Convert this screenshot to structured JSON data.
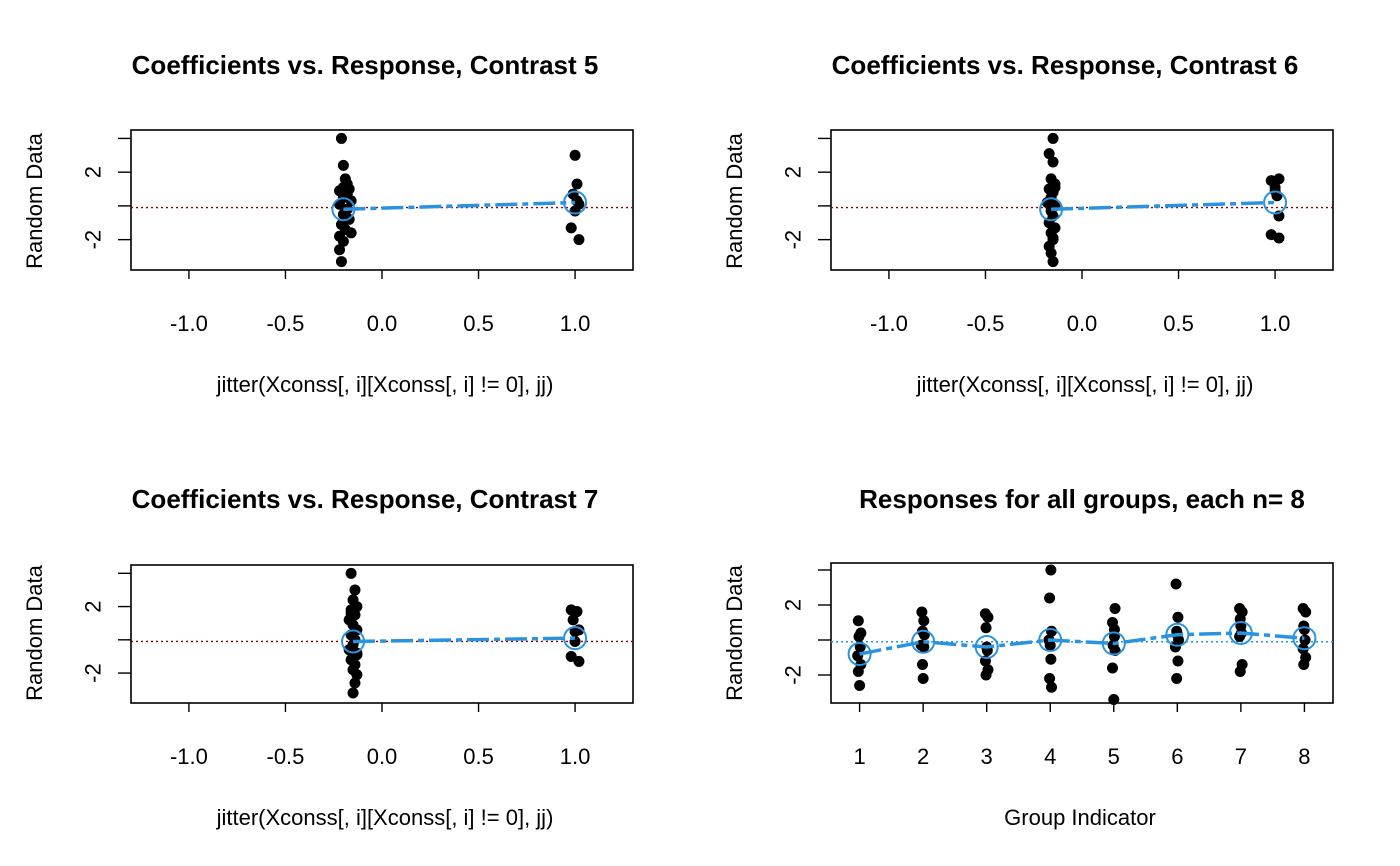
{
  "chart_data": [
    {
      "type": "scatter",
      "title": "Coefficients vs. Response, Contrast 5",
      "xlabel": "jitter(Xconss[, i][Xconss[, i] != 0], jj)",
      "ylabel": "Random Data",
      "xlim": [
        -1.3,
        1.3
      ],
      "ylim": [
        -3.8,
        4.5
      ],
      "x_ticks": [
        -1.0,
        -0.5,
        0.0,
        0.5,
        1.0
      ],
      "x_tick_labels": [
        "-1.0",
        "-0.5",
        "0.0",
        "0.5",
        "1.0"
      ],
      "y_ticks": [
        -4,
        -2,
        0,
        2,
        4
      ],
      "y_tick_labels": [
        "",
        "-2",
        "",
        "2",
        ""
      ],
      "reference_line": {
        "y": -0.1,
        "style": "dotted",
        "color": "#8b0000"
      },
      "points": [
        {
          "x": -0.21,
          "y": 4.0
        },
        {
          "x": -0.2,
          "y": 2.4
        },
        {
          "x": -0.19,
          "y": 1.6
        },
        {
          "x": -0.18,
          "y": 1.3
        },
        {
          "x": -0.2,
          "y": 1.1
        },
        {
          "x": -0.17,
          "y": 1.0
        },
        {
          "x": -0.22,
          "y": 0.9
        },
        {
          "x": -0.18,
          "y": 0.7
        },
        {
          "x": -0.2,
          "y": 0.5
        },
        {
          "x": -0.16,
          "y": 0.3
        },
        {
          "x": -0.22,
          "y": 0.1
        },
        {
          "x": -0.18,
          "y": -0.2
        },
        {
          "x": -0.2,
          "y": -0.5
        },
        {
          "x": -0.17,
          "y": -0.8
        },
        {
          "x": -0.21,
          "y": -1.1
        },
        {
          "x": -0.19,
          "y": -1.4
        },
        {
          "x": -0.22,
          "y": -1.8
        },
        {
          "x": -0.2,
          "y": -2.1
        },
        {
          "x": -0.22,
          "y": -2.6
        },
        {
          "x": -0.21,
          "y": -3.3
        },
        {
          "x": -0.16,
          "y": -1.6
        },
        {
          "x": -0.18,
          "y": 0.9
        },
        {
          "x": 1.0,
          "y": 3.0
        },
        {
          "x": 1.01,
          "y": 1.3
        },
        {
          "x": 0.99,
          "y": 0.7
        },
        {
          "x": 1.02,
          "y": 0.1
        },
        {
          "x": 1.0,
          "y": -0.3
        },
        {
          "x": 0.98,
          "y": -1.3
        },
        {
          "x": 1.02,
          "y": -2.0
        },
        {
          "x": 1.01,
          "y": 0.3
        }
      ],
      "means": [
        {
          "x": -0.2,
          "y": -0.2
        },
        {
          "x": 1.0,
          "y": 0.2
        }
      ],
      "mean_color": "#2a93e0"
    },
    {
      "type": "scatter",
      "title": "Coefficients vs. Response, Contrast 6",
      "xlabel": "jitter(Xconss[, i][Xconss[, i] != 0], jj)",
      "ylabel": "Random Data",
      "xlim": [
        -1.3,
        1.3
      ],
      "ylim": [
        -3.8,
        4.5
      ],
      "x_ticks": [
        -1.0,
        -0.5,
        0.0,
        0.5,
        1.0
      ],
      "x_tick_labels": [
        "-1.0",
        "-0.5",
        "0.0",
        "0.5",
        "1.0"
      ],
      "y_ticks": [
        -4,
        -2,
        0,
        2,
        4
      ],
      "y_tick_labels": [
        "",
        "-2",
        "",
        "2",
        ""
      ],
      "reference_line": {
        "y": -0.1,
        "style": "dotted",
        "color": "#8b0000"
      },
      "points": [
        {
          "x": -0.15,
          "y": 4.0
        },
        {
          "x": -0.17,
          "y": 3.1
        },
        {
          "x": -0.15,
          "y": 2.6
        },
        {
          "x": -0.16,
          "y": 1.6
        },
        {
          "x": -0.14,
          "y": 1.3
        },
        {
          "x": -0.17,
          "y": 1.0
        },
        {
          "x": -0.15,
          "y": 0.8
        },
        {
          "x": -0.16,
          "y": 0.5
        },
        {
          "x": -0.18,
          "y": 0.2
        },
        {
          "x": -0.14,
          "y": 0.0
        },
        {
          "x": -0.16,
          "y": -0.3
        },
        {
          "x": -0.15,
          "y": -0.6
        },
        {
          "x": -0.17,
          "y": -1.0
        },
        {
          "x": -0.14,
          "y": -1.3
        },
        {
          "x": -0.16,
          "y": -1.6
        },
        {
          "x": -0.15,
          "y": -2.0
        },
        {
          "x": -0.17,
          "y": -2.4
        },
        {
          "x": -0.16,
          "y": -2.8
        },
        {
          "x": -0.15,
          "y": -3.3
        },
        {
          "x": -0.14,
          "y": 1.1
        },
        {
          "x": -0.16,
          "y": -0.1
        },
        {
          "x": -0.15,
          "y": -1.9
        },
        {
          "x": 0.98,
          "y": 1.5
        },
        {
          "x": 1.02,
          "y": 1.6
        },
        {
          "x": 1.0,
          "y": 1.1
        },
        {
          "x": 1.01,
          "y": 0.6
        },
        {
          "x": 1.02,
          "y": -0.6
        },
        {
          "x": 0.98,
          "y": -1.7
        },
        {
          "x": 1.02,
          "y": -1.9
        },
        {
          "x": 1.0,
          "y": 0.9
        }
      ],
      "means": [
        {
          "x": -0.16,
          "y": -0.2
        },
        {
          "x": 1.0,
          "y": 0.2
        }
      ],
      "mean_color": "#2a93e0"
    },
    {
      "type": "scatter",
      "title": "Coefficients vs. Response, Contrast 7",
      "xlabel": "jitter(Xconss[, i][Xconss[, i] != 0], jj)",
      "ylabel": "Random Data",
      "xlim": [
        -1.3,
        1.3
      ],
      "ylim": [
        -3.8,
        4.5
      ],
      "x_ticks": [
        -1.0,
        -0.5,
        0.0,
        0.5,
        1.0
      ],
      "x_tick_labels": [
        "-1.0",
        "-0.5",
        "0.0",
        "0.5",
        "1.0"
      ],
      "y_ticks": [
        -4,
        -2,
        0,
        2,
        4
      ],
      "y_tick_labels": [
        "",
        "-2",
        "",
        "2",
        ""
      ],
      "reference_line": {
        "y": -0.1,
        "style": "dotted",
        "color": "#8b0000"
      },
      "points": [
        {
          "x": -0.16,
          "y": 4.0
        },
        {
          "x": -0.14,
          "y": 3.0
        },
        {
          "x": -0.15,
          "y": 2.4
        },
        {
          "x": -0.13,
          "y": 2.0
        },
        {
          "x": -0.16,
          "y": 1.8
        },
        {
          "x": -0.14,
          "y": 1.5
        },
        {
          "x": -0.17,
          "y": 1.2
        },
        {
          "x": -0.15,
          "y": 0.9
        },
        {
          "x": -0.13,
          "y": 0.6
        },
        {
          "x": -0.16,
          "y": 0.3
        },
        {
          "x": -0.14,
          "y": 0.0
        },
        {
          "x": -0.15,
          "y": -0.3
        },
        {
          "x": -0.17,
          "y": -0.6
        },
        {
          "x": -0.13,
          "y": -0.9
        },
        {
          "x": -0.16,
          "y": -1.2
        },
        {
          "x": -0.14,
          "y": -1.5
        },
        {
          "x": -0.15,
          "y": -1.8
        },
        {
          "x": -0.13,
          "y": -2.1
        },
        {
          "x": -0.14,
          "y": -2.6
        },
        {
          "x": -0.15,
          "y": -3.2
        },
        {
          "x": -0.16,
          "y": 1.6
        },
        {
          "x": -0.13,
          "y": -0.8
        },
        {
          "x": 0.98,
          "y": 1.8
        },
        {
          "x": 1.01,
          "y": 1.7
        },
        {
          "x": 0.99,
          "y": 1.2
        },
        {
          "x": 1.02,
          "y": 0.6
        },
        {
          "x": 1.0,
          "y": -0.1
        },
        {
          "x": 0.98,
          "y": -1.0
        },
        {
          "x": 1.02,
          "y": -1.3
        },
        {
          "x": 1.0,
          "y": 0.5
        }
      ],
      "means": [
        {
          "x": -0.15,
          "y": -0.1
        },
        {
          "x": 1.0,
          "y": 0.1
        }
      ],
      "mean_color": "#2a93e0"
    },
    {
      "type": "scatter",
      "title": "Responses for all groups, each n= 8",
      "xlabel": "Group Indicator",
      "ylabel": "Random Data",
      "xlim": [
        0.55,
        8.45
      ],
      "ylim": [
        -3.6,
        4.4
      ],
      "x_ticks": [
        1,
        2,
        3,
        4,
        5,
        6,
        7,
        8
      ],
      "x_tick_labels": [
        "1",
        "2",
        "3",
        "4",
        "5",
        "6",
        "7",
        "8"
      ],
      "y_ticks": [
        -4,
        -2,
        0,
        2,
        4
      ],
      "y_tick_labels": [
        "",
        "-2",
        "",
        "2",
        ""
      ],
      "reference_line": {
        "y": -0.1,
        "style": "dotted",
        "color": "#2a93e0"
      },
      "points": [
        {
          "x": 0.98,
          "y": 1.1
        },
        {
          "x": 1.02,
          "y": 0.4
        },
        {
          "x": 0.99,
          "y": 0.2
        },
        {
          "x": 1.01,
          "y": -0.4
        },
        {
          "x": 0.97,
          "y": -0.9
        },
        {
          "x": 1.02,
          "y": -1.4
        },
        {
          "x": 0.98,
          "y": -1.8
        },
        {
          "x": 1.0,
          "y": -2.6
        },
        {
          "x": 1.98,
          "y": 1.6
        },
        {
          "x": 2.01,
          "y": 1.1
        },
        {
          "x": 1.99,
          "y": 0.5
        },
        {
          "x": 2.02,
          "y": 0.3
        },
        {
          "x": 1.97,
          "y": -0.3
        },
        {
          "x": 2.01,
          "y": -0.4
        },
        {
          "x": 1.99,
          "y": -1.4
        },
        {
          "x": 2.0,
          "y": -2.2
        },
        {
          "x": 2.98,
          "y": 1.5
        },
        {
          "x": 3.02,
          "y": 1.3
        },
        {
          "x": 2.99,
          "y": 0.7
        },
        {
          "x": 3.01,
          "y": -0.6
        },
        {
          "x": 2.98,
          "y": -1.2
        },
        {
          "x": 3.02,
          "y": -1.7
        },
        {
          "x": 2.99,
          "y": -2.0
        },
        {
          "x": 3.0,
          "y": -0.4
        },
        {
          "x": 4.01,
          "y": 4.0
        },
        {
          "x": 3.99,
          "y": 2.4
        },
        {
          "x": 4.02,
          "y": 0.5
        },
        {
          "x": 3.98,
          "y": 0.0
        },
        {
          "x": 4.01,
          "y": -1.1
        },
        {
          "x": 3.99,
          "y": -2.2
        },
        {
          "x": 4.02,
          "y": -2.7
        },
        {
          "x": 4.0,
          "y": -0.3
        },
        {
          "x": 5.02,
          "y": 1.8
        },
        {
          "x": 4.98,
          "y": 1.0
        },
        {
          "x": 5.01,
          "y": 0.6
        },
        {
          "x": 4.99,
          "y": -0.3
        },
        {
          "x": 5.02,
          "y": -0.6
        },
        {
          "x": 4.98,
          "y": -1.6
        },
        {
          "x": 5.0,
          "y": -3.4
        },
        {
          "x": 5.01,
          "y": 0.2
        },
        {
          "x": 5.98,
          "y": 3.2
        },
        {
          "x": 6.01,
          "y": 1.3
        },
        {
          "x": 5.99,
          "y": 0.5
        },
        {
          "x": 6.02,
          "y": 0.0
        },
        {
          "x": 5.97,
          "y": -0.4
        },
        {
          "x": 6.01,
          "y": -1.2
        },
        {
          "x": 5.99,
          "y": -2.2
        },
        {
          "x": 6.0,
          "y": 0.3
        },
        {
          "x": 6.98,
          "y": 1.8
        },
        {
          "x": 7.02,
          "y": 1.6
        },
        {
          "x": 6.99,
          "y": 1.2
        },
        {
          "x": 7.01,
          "y": 0.4
        },
        {
          "x": 6.98,
          "y": 0.2
        },
        {
          "x": 7.02,
          "y": -1.4
        },
        {
          "x": 6.99,
          "y": -1.8
        },
        {
          "x": 7.0,
          "y": 0.8
        },
        {
          "x": 7.98,
          "y": 1.8
        },
        {
          "x": 8.02,
          "y": 1.6
        },
        {
          "x": 7.99,
          "y": 0.8
        },
        {
          "x": 8.01,
          "y": 0.0
        },
        {
          "x": 7.98,
          "y": -0.5
        },
        {
          "x": 8.02,
          "y": -1.0
        },
        {
          "x": 7.99,
          "y": -1.4
        },
        {
          "x": 8.0,
          "y": 0.6
        }
      ],
      "means": [
        {
          "x": 1,
          "y": -0.8
        },
        {
          "x": 2,
          "y": -0.1
        },
        {
          "x": 3,
          "y": -0.4
        },
        {
          "x": 4,
          "y": 0.0
        },
        {
          "x": 5,
          "y": -0.2
        },
        {
          "x": 6,
          "y": 0.3
        },
        {
          "x": 7,
          "y": 0.4
        },
        {
          "x": 8,
          "y": 0.1
        }
      ],
      "mean_color": "#2a93e0"
    }
  ]
}
